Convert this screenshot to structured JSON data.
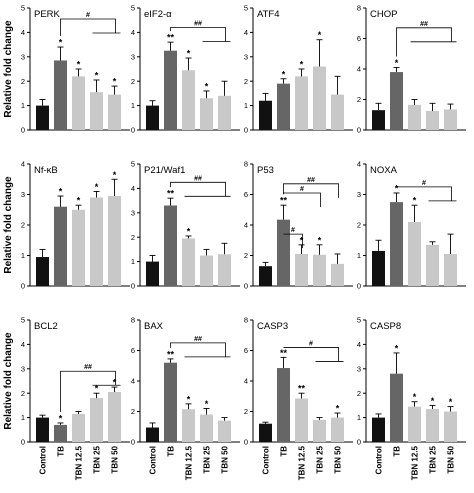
{
  "figure": {
    "ylabel": "Relative fold change",
    "categories": [
      "Control",
      "TB",
      "TBN 12.5",
      "TBN 25",
      "TBN 50"
    ],
    "colors": [
      "#111111",
      "#666666",
      "#c8c8c8",
      "#c8c8c8",
      "#c8c8c8"
    ]
  },
  "chart_data": [
    {
      "type": "bar",
      "title": "PERK",
      "ylim": [
        0,
        5
      ],
      "yticks": [
        "0",
        "1",
        "2",
        "3",
        "4",
        "5"
      ],
      "values": [
        1.0,
        2.85,
        2.2,
        1.55,
        1.45
      ],
      "errors": [
        0.25,
        0.55,
        0.3,
        0.5,
        0.35
      ],
      "sig": [
        "",
        "*",
        "*",
        "*",
        "*"
      ],
      "brackets": [
        {
          "label": "#",
          "from": 1,
          "to": [
            3,
            4
          ],
          "y": 4.55
        }
      ]
    },
    {
      "type": "bar",
      "title": "eIF2-α",
      "ylim": [
        0,
        5
      ],
      "yticks": [
        "0",
        "1",
        "2",
        "3",
        "4",
        "5"
      ],
      "values": [
        1.0,
        3.25,
        2.45,
        1.3,
        1.4
      ],
      "errors": [
        0.2,
        0.35,
        0.5,
        0.3,
        0.6
      ],
      "sig": [
        "",
        "**",
        "*",
        "*",
        ""
      ],
      "brackets": [
        {
          "label": "##",
          "from": 1,
          "to": [
            3,
            4
          ],
          "y": 4.2
        }
      ]
    },
    {
      "type": "bar",
      "title": "ATF4",
      "ylim": [
        0,
        5
      ],
      "yticks": [
        "0",
        "1",
        "2",
        "3",
        "4",
        "5"
      ],
      "values": [
        1.2,
        1.9,
        2.2,
        2.6,
        1.45
      ],
      "errors": [
        0.3,
        0.2,
        0.3,
        1.1,
        0.75
      ],
      "sig": [
        "",
        "*",
        "*",
        "*",
        ""
      ],
      "brackets": []
    },
    {
      "type": "bar",
      "title": "CHOP",
      "ylim": [
        0,
        8
      ],
      "yticks": [
        "0",
        "2",
        "4",
        "6",
        "8"
      ],
      "values": [
        1.3,
        3.8,
        1.65,
        1.25,
        1.35
      ],
      "errors": [
        0.45,
        0.3,
        0.35,
        0.5,
        0.35
      ],
      "sig": [
        "",
        "*",
        "",
        "",
        ""
      ],
      "brackets": [
        {
          "label": "##",
          "from": 1,
          "to": [
            2,
            3,
            4
          ],
          "y": 6.7
        }
      ]
    },
    {
      "type": "bar",
      "title": "Nf-κB",
      "ylim": [
        0,
        4
      ],
      "yticks": [
        "0",
        "1",
        "2",
        "3",
        "4"
      ],
      "values": [
        0.95,
        2.6,
        2.5,
        2.9,
        2.95
      ],
      "errors": [
        0.25,
        0.35,
        0.15,
        0.2,
        0.55
      ],
      "sig": [
        "",
        "*",
        "*",
        "*",
        "*"
      ],
      "brackets": []
    },
    {
      "type": "bar",
      "title": "P21/Waf1",
      "ylim": [
        0,
        5
      ],
      "yticks": [
        "0",
        "1",
        "2",
        "3",
        "4",
        "5"
      ],
      "values": [
        1.0,
        3.3,
        1.95,
        1.25,
        1.3
      ],
      "errors": [
        0.25,
        0.3,
        0.1,
        0.25,
        0.45
      ],
      "sig": [
        "",
        "**",
        "*",
        "",
        ""
      ],
      "brackets": [
        {
          "label": "##",
          "from": 1,
          "to": [
            2,
            3,
            4
          ],
          "y": 4.25
        }
      ]
    },
    {
      "type": "bar",
      "title": "P53",
      "ylim": [
        0,
        8
      ],
      "yticks": [
        "0",
        "2",
        "4",
        "6",
        "8"
      ],
      "values": [
        1.3,
        4.35,
        2.1,
        2.05,
        1.45
      ],
      "errors": [
        0.25,
        0.95,
        0.6,
        0.65,
        0.65
      ],
      "sig": [
        "",
        "**",
        "*",
        "*",
        ""
      ],
      "brackets": [
        {
          "label": "##",
          "from": 1,
          "to": [
            4
          ],
          "y": 6.7
        },
        {
          "label": "#",
          "from": 1,
          "to": [
            3
          ],
          "y": 6.1
        },
        {
          "label": "#",
          "from": 1,
          "to": [
            2
          ],
          "y": 3.4
        }
      ]
    },
    {
      "type": "bar",
      "title": "NOXA",
      "ylim": [
        0,
        4
      ],
      "yticks": [
        "0",
        "1",
        "2",
        "3",
        "4"
      ],
      "values": [
        1.15,
        2.75,
        2.1,
        1.35,
        1.05
      ],
      "errors": [
        0.35,
        0.3,
        0.55,
        0.1,
        0.65
      ],
      "sig": [
        "",
        "*",
        "*",
        "",
        ""
      ],
      "brackets": [
        {
          "label": "#",
          "from": 1,
          "to": [
            3,
            4
          ],
          "y": 3.25
        }
      ]
    },
    {
      "type": "bar",
      "title": "BCL2",
      "ylim": [
        0,
        5
      ],
      "yticks": [
        "0",
        "1",
        "2",
        "3",
        "4",
        "5"
      ],
      "values": [
        1.0,
        0.7,
        1.15,
        1.8,
        2.05
      ],
      "errors": [
        0.1,
        0.08,
        0.1,
        0.2,
        0.2
      ],
      "sig": [
        "",
        "*",
        "",
        "*",
        "*"
      ],
      "brackets": [
        {
          "label": "##",
          "from": 1,
          "to": [
            3,
            4
          ],
          "y": 2.9
        }
      ]
    },
    {
      "type": "bar",
      "title": "BAX",
      "ylim": [
        0,
        8
      ],
      "yticks": [
        "0",
        "2",
        "4",
        "6",
        "8"
      ],
      "values": [
        0.95,
        5.2,
        2.15,
        1.8,
        1.4
      ],
      "errors": [
        0.3,
        0.25,
        0.35,
        0.4,
        0.2
      ],
      "sig": [
        "",
        "**",
        "*",
        "*",
        ""
      ],
      "brackets": [
        {
          "label": "##",
          "from": 1,
          "to": [
            2,
            3,
            4
          ],
          "y": 6.5
        }
      ]
    },
    {
      "type": "bar",
      "title": "CASP3",
      "ylim": [
        0,
        8
      ],
      "yticks": [
        "0",
        "2",
        "4",
        "6",
        "8"
      ],
      "values": [
        1.2,
        4.85,
        2.85,
        1.45,
        1.6
      ],
      "errors": [
        0.1,
        0.7,
        0.35,
        0.15,
        0.3
      ],
      "sig": [
        "",
        "**",
        "**",
        "",
        "*"
      ],
      "brackets": [
        {
          "label": "#",
          "from": 1,
          "to": [
            3,
            4
          ],
          "y": 6.2
        }
      ]
    },
    {
      "type": "bar",
      "title": "CASP8",
      "ylim": [
        0,
        5
      ],
      "yticks": [
        "0",
        "1",
        "2",
        "3",
        "4",
        "5"
      ],
      "values": [
        1.0,
        2.8,
        1.45,
        1.35,
        1.25
      ],
      "errors": [
        0.15,
        0.85,
        0.2,
        0.15,
        0.2
      ],
      "sig": [
        "",
        "*",
        "*",
        "*",
        "*"
      ],
      "brackets": []
    }
  ]
}
